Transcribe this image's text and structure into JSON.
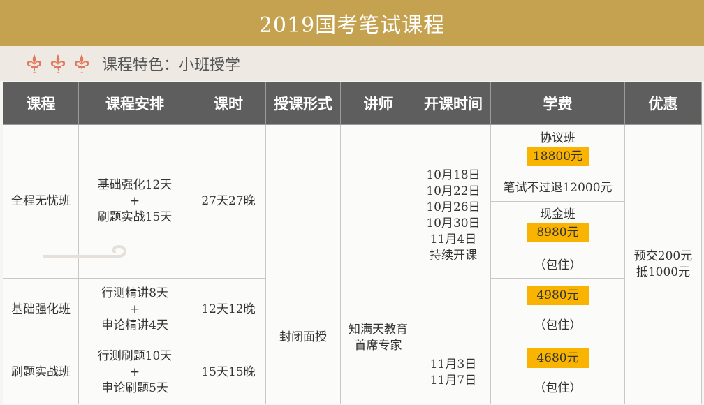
{
  "title": "2019国考笔试课程",
  "feature": "课程特色：小班授学",
  "colors": {
    "title_bg": "#c5a250",
    "header_bg": "#5e5e5e",
    "price_bg": "#f8b400",
    "fleur": "#e07a5f"
  },
  "headers": [
    "课程",
    "课程安排",
    "课时",
    "授课形式",
    "讲师",
    "开课时间",
    "学费",
    "优惠"
  ],
  "shared": {
    "format": "封闭面授",
    "teacher_line1": "知满天教育",
    "teacher_line2": "首席专家",
    "discount_line1": "预交200元",
    "discount_line2": "抵1000元"
  },
  "rows": [
    {
      "name": "全程无忧班",
      "plan": [
        "基础强化12天",
        "+",
        "刷题实战15天"
      ],
      "hours": "27天27晚",
      "fee_a": {
        "label": "协议班",
        "price": "18800元",
        "note": "笔试不过退12000元"
      },
      "fee_b": {
        "label": "现金班",
        "price": "8980元",
        "note": "（包住）"
      }
    },
    {
      "name": "基础强化班",
      "plan": [
        "行测精讲8天",
        "+",
        "申论精讲4天"
      ],
      "hours": "12天12晚",
      "fee": {
        "price": "4980元",
        "note": "（包住）"
      }
    },
    {
      "name": "刷题实战班",
      "plan": [
        "行测刷题10天",
        "+",
        "申论刷题5天"
      ],
      "hours": "15天15晚",
      "fee": {
        "price": "4680元",
        "note": "（包住）"
      }
    }
  ],
  "dates_group1": [
    "10月18日",
    "10月22日",
    "10月26日",
    "10月30日",
    "11月4日",
    "持续开课"
  ],
  "dates_group2": [
    "11月3日",
    "11月7日"
  ]
}
